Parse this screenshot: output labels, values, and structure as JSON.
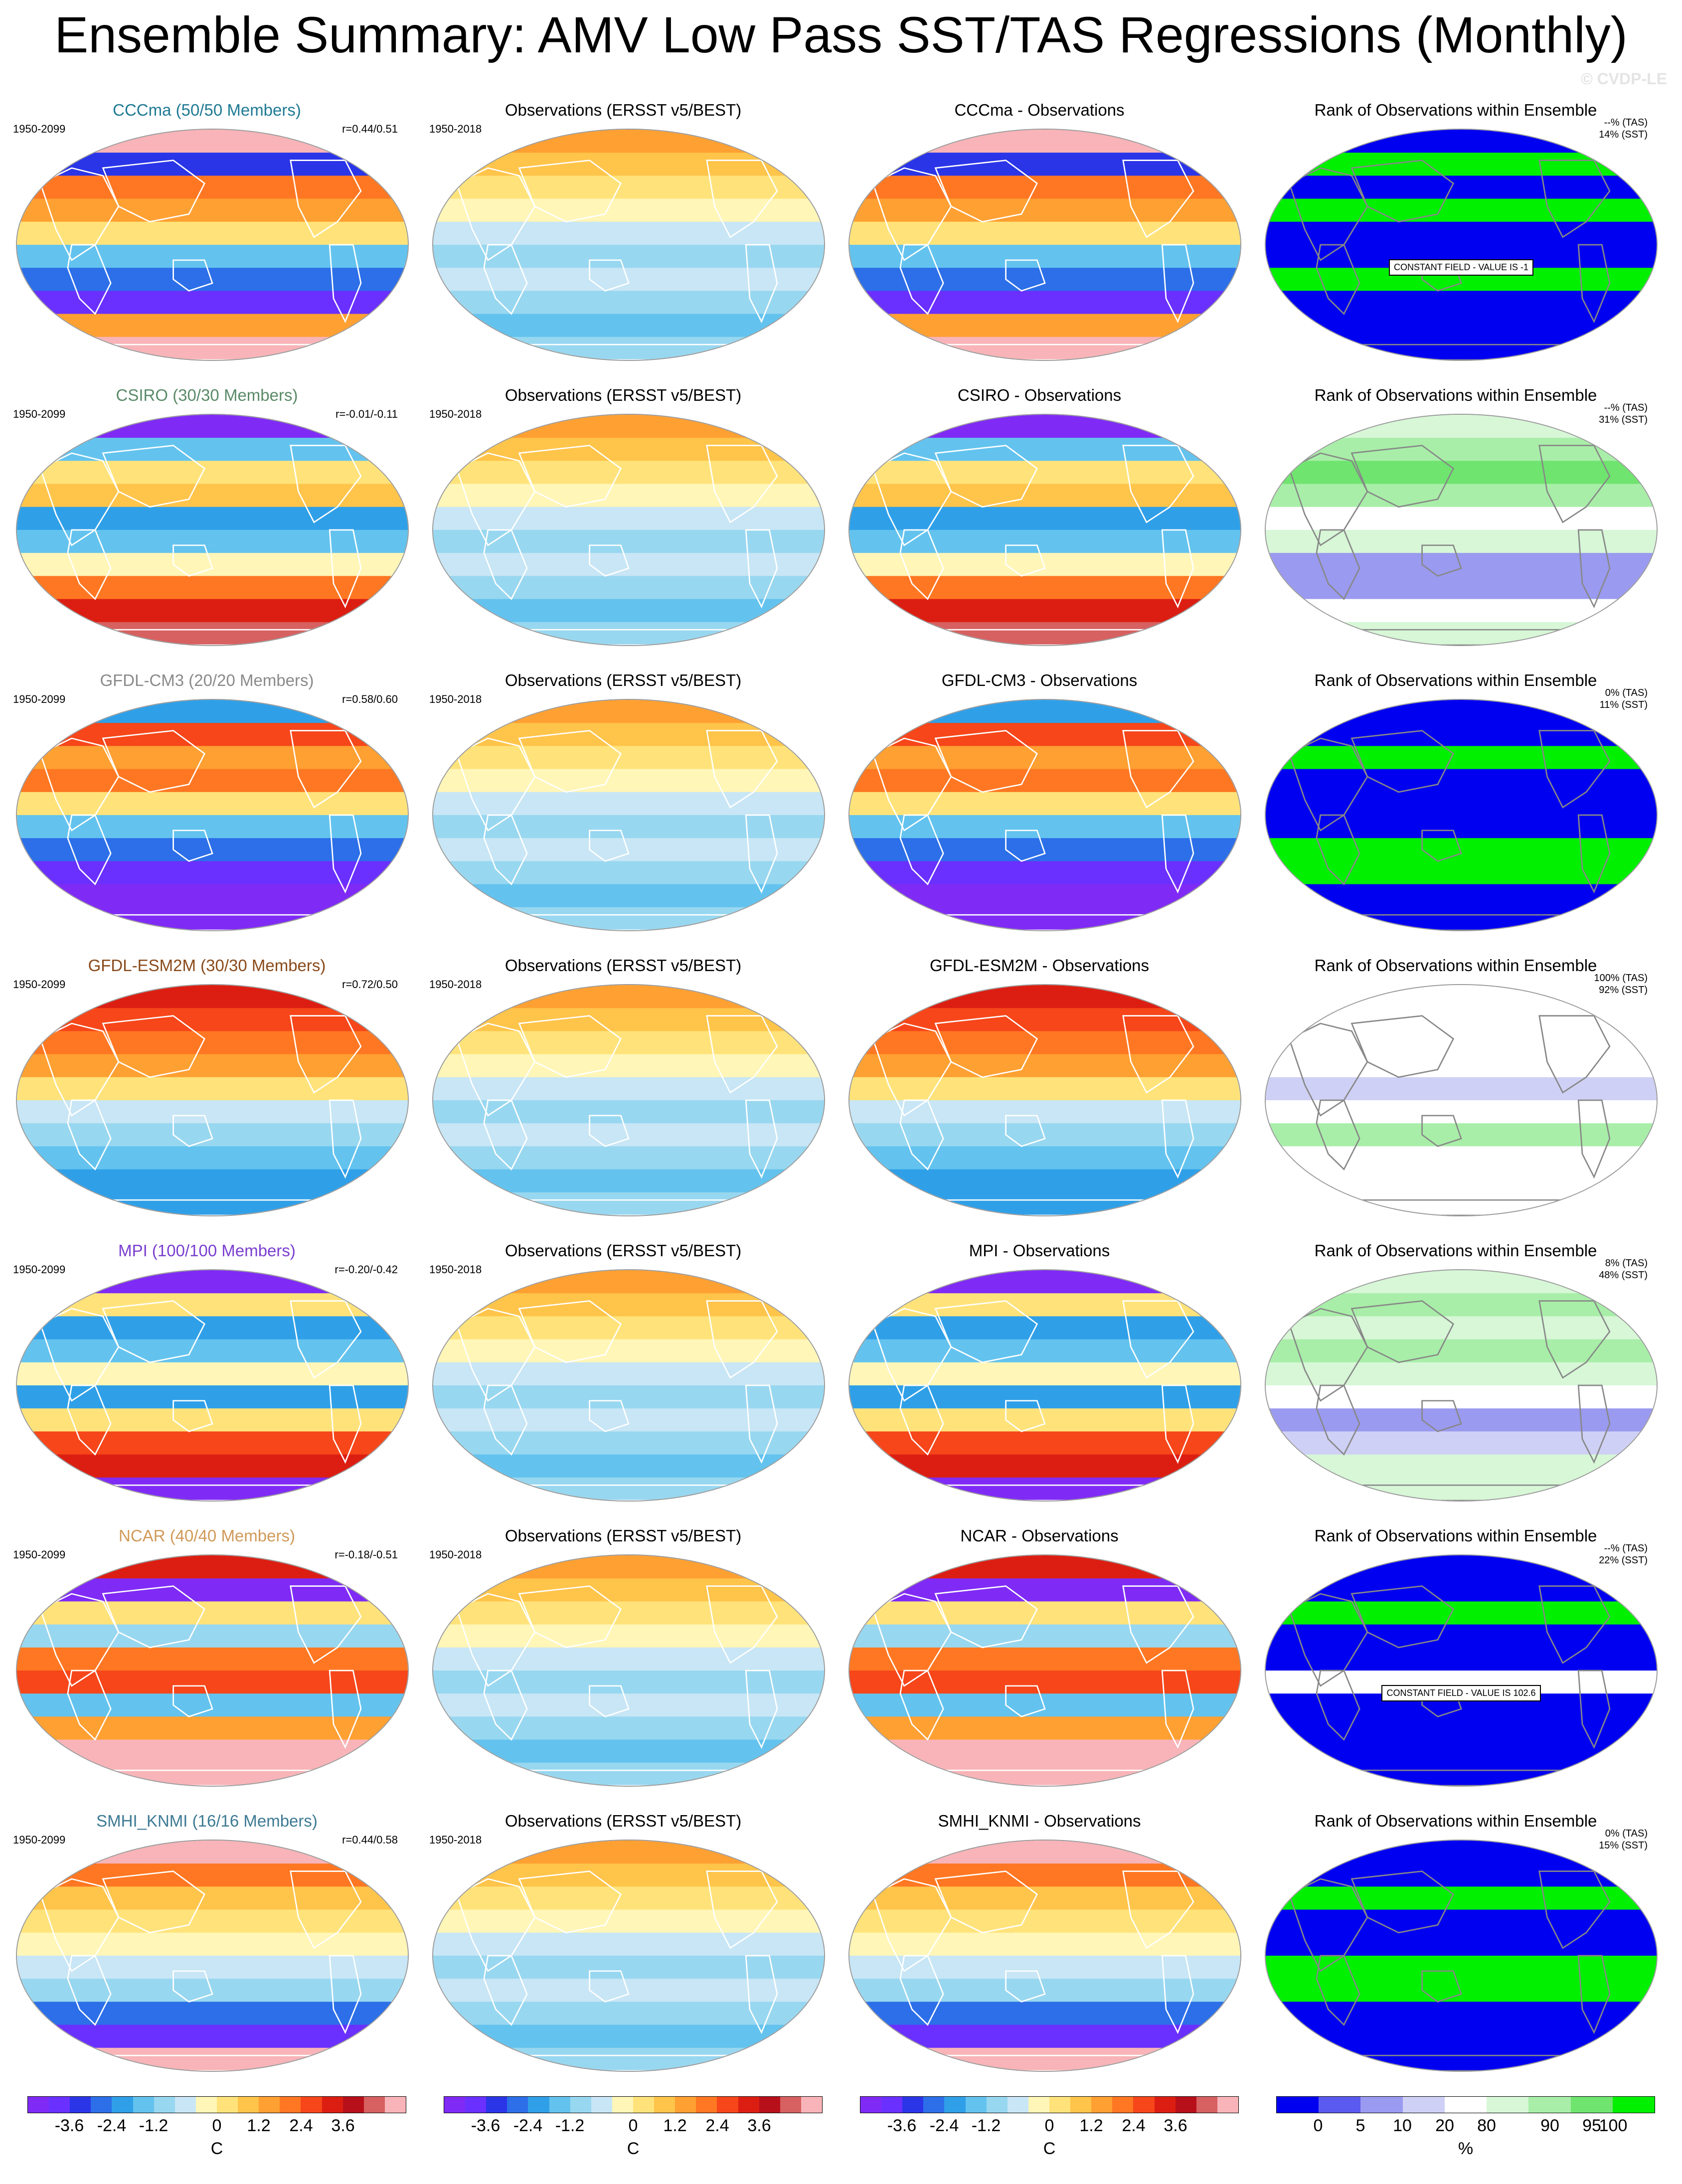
{
  "title": "Ensemble Summary: AMV Low Pass SST/TAS Regressions (Monthly)",
  "watermark": "© CVDP-LE",
  "colors": {
    "model_title_CCCma": "#1f7a94",
    "model_title_CSIRO": "#5a8a68",
    "model_title_GFDL-CM3": "#8a8a8a",
    "model_title_GFDL-ESM2M": "#8a4a1a",
    "model_title_MPI": "#7a3fd0",
    "model_title_NCAR": "#d09a5a",
    "model_title_SMHI_KNMI": "#3d7a94",
    "land_mask": "#f9b3b7",
    "diverging_scale": [
      "#7f2bf5",
      "#6a30ff",
      "#2a35e8",
      "#2c6fe8",
      "#2fa0e8",
      "#63c3ee",
      "#98d7f0",
      "#c8e6f5",
      "#fff6b8",
      "#ffe37a",
      "#ffc44a",
      "#ffa032",
      "#ff7722",
      "#f6461a",
      "#dc1e12",
      "#b8101a",
      "#d76060",
      "#f8b4b8"
    ],
    "rank_scale": [
      "#0000f0",
      "#5a5af0",
      "#9a9af0",
      "#cfd0f5",
      "#ffffff",
      "#d7f7d7",
      "#a8eea8",
      "#6fe46f",
      "#00f000"
    ]
  },
  "rows": [
    {
      "model": {
        "title": "CCCma (50/50 Members)",
        "period": "1950-2099",
        "corr": "r=0.44/0.51"
      },
      "obs": {
        "title": "Observations (ERSST v5/BEST)",
        "period": "1950-2018"
      },
      "diff": {
        "title": "CCCma - Observations"
      },
      "rank": {
        "title": "Rank of Observations within Ensemble",
        "tas": "--% (TAS)",
        "sst": "14% (SST)",
        "note": "CONSTANT FIELD - VALUE IS -1"
      }
    },
    {
      "model": {
        "title": "CSIRO (30/30 Members)",
        "period": "1950-2099",
        "corr": "r=-0.01/-0.11"
      },
      "obs": {
        "title": "Observations (ERSST v5/BEST)",
        "period": "1950-2018"
      },
      "diff": {
        "title": "CSIRO - Observations"
      },
      "rank": {
        "title": "Rank of Observations within Ensemble",
        "tas": "--% (TAS)",
        "sst": "31% (SST)",
        "note": ""
      }
    },
    {
      "model": {
        "title": "GFDL-CM3 (20/20 Members)",
        "period": "1950-2099",
        "corr": "r=0.58/0.60"
      },
      "obs": {
        "title": "Observations (ERSST v5/BEST)",
        "period": "1950-2018"
      },
      "diff": {
        "title": "GFDL-CM3 - Observations"
      },
      "rank": {
        "title": "Rank of Observations within Ensemble",
        "tas": "0% (TAS)",
        "sst": "11% (SST)",
        "note": ""
      }
    },
    {
      "model": {
        "title": "GFDL-ESM2M (30/30 Members)",
        "period": "1950-2099",
        "corr": "r=0.72/0.50"
      },
      "obs": {
        "title": "Observations (ERSST v5/BEST)",
        "period": "1950-2018"
      },
      "diff": {
        "title": "GFDL-ESM2M - Observations"
      },
      "rank": {
        "title": "Rank of Observations within Ensemble",
        "tas": "100% (TAS)",
        "sst": "92% (SST)",
        "note": ""
      }
    },
    {
      "model": {
        "title": "MPI (100/100 Members)",
        "period": "1950-2099",
        "corr": "r=-0.20/-0.42"
      },
      "obs": {
        "title": "Observations (ERSST v5/BEST)",
        "period": "1950-2018"
      },
      "diff": {
        "title": "MPI - Observations"
      },
      "rank": {
        "title": "Rank of Observations within Ensemble",
        "tas": "8% (TAS)",
        "sst": "48% (SST)",
        "note": ""
      }
    },
    {
      "model": {
        "title": "NCAR (40/40 Members)",
        "period": "1950-2099",
        "corr": "r=-0.18/-0.51"
      },
      "obs": {
        "title": "Observations (ERSST v5/BEST)",
        "period": "1950-2018"
      },
      "diff": {
        "title": "NCAR - Observations"
      },
      "rank": {
        "title": "Rank of Observations within Ensemble",
        "tas": "--% (TAS)",
        "sst": "22% (SST)",
        "note": "CONSTANT FIELD - VALUE IS 102.6"
      }
    },
    {
      "model": {
        "title": "SMHI_KNMI (16/16 Members)",
        "period": "1950-2099",
        "corr": "r=0.44/0.58"
      },
      "obs": {
        "title": "Observations (ERSST v5/BEST)",
        "period": "1950-2018"
      },
      "diff": {
        "title": "SMHI_KNMI - Observations"
      },
      "rank": {
        "title": "Rank of Observations within Ensemble",
        "tas": "0% (TAS)",
        "sst": "15% (SST)",
        "note": ""
      }
    }
  ],
  "colorbars": {
    "regression": {
      "ticks": [
        "-3.6",
        "-2.4",
        "-1.2",
        "0",
        "1.2",
        "2.4",
        "3.6"
      ],
      "unit": "C"
    },
    "rank": {
      "ticks": [
        "0",
        "5",
        "10",
        "20",
        "80",
        "90",
        "95",
        "100"
      ],
      "unit": "%"
    }
  }
}
